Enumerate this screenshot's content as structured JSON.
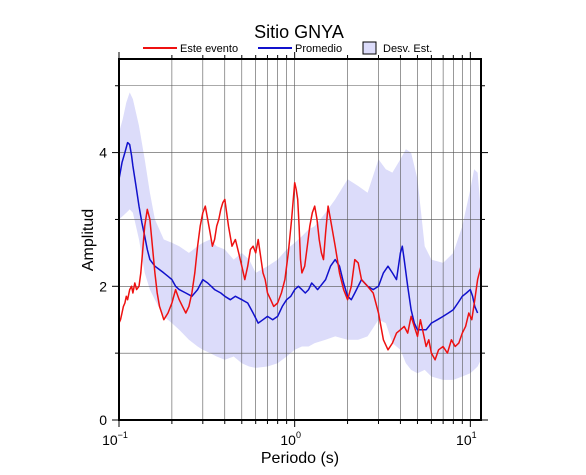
{
  "chart_data": {
    "type": "line",
    "title": "Sitio GNYA",
    "xlabel": "Periodo (s)",
    "ylabel": "Amplitud",
    "xscale": "log",
    "xlim": [
      0.1,
      11.5
    ],
    "ylim": [
      0,
      5.4
    ],
    "xticks": [
      {
        "value": 0.1,
        "base": "10",
        "exp": "−1"
      },
      {
        "value": 1,
        "base": "10",
        "exp": "0"
      },
      {
        "value": 10,
        "base": "10",
        "exp": "1"
      }
    ],
    "yticks": [
      0,
      2,
      4
    ],
    "grid": true,
    "legend": {
      "placement": "top",
      "entries": [
        {
          "label": "Este evento",
          "type": "line",
          "color": "#ee1111"
        },
        {
          "label": "Promedio",
          "type": "line",
          "color": "#1111cc"
        },
        {
          "label": "Desv. Est.",
          "type": "box",
          "color": "#dcdcfa"
        }
      ]
    },
    "band": {
      "name": "Desv. Est.",
      "color": "#dcdcfa",
      "x": [
        0.1,
        0.105,
        0.11,
        0.115,
        0.12,
        0.13,
        0.14,
        0.15,
        0.16,
        0.18,
        0.2,
        0.22,
        0.25,
        0.28,
        0.3,
        0.33,
        0.36,
        0.4,
        0.45,
        0.5,
        0.55,
        0.6,
        0.7,
        0.8,
        0.9,
        1.0,
        1.1,
        1.2,
        1.3,
        1.5,
        1.7,
        2.0,
        2.3,
        2.6,
        3.0,
        3.3,
        3.6,
        4.0,
        4.3,
        4.6,
        5.0,
        5.5,
        6.0,
        7.0,
        8.0,
        9.0,
        10.0,
        10.5,
        11.0,
        11.5
      ],
      "upper": [
        4.3,
        4.5,
        4.75,
        4.9,
        4.8,
        4.4,
        3.9,
        3.4,
        3.0,
        2.7,
        2.65,
        2.6,
        2.5,
        2.6,
        2.65,
        2.7,
        2.6,
        2.55,
        2.4,
        2.5,
        2.4,
        2.2,
        2.3,
        2.4,
        2.55,
        2.65,
        2.75,
        2.85,
        2.9,
        3.1,
        3.3,
        3.6,
        3.5,
        3.4,
        3.9,
        3.75,
        3.7,
        3.9,
        4.05,
        4.0,
        3.6,
        2.6,
        2.4,
        2.35,
        2.5,
        2.9,
        3.45,
        3.75,
        3.7,
        3.1
      ],
      "lower": [
        3.0,
        3.05,
        3.1,
        3.15,
        3.1,
        2.7,
        2.2,
        1.95,
        1.8,
        1.55,
        1.45,
        1.35,
        1.2,
        1.1,
        1.05,
        1.0,
        0.95,
        0.9,
        0.95,
        0.85,
        0.8,
        0.78,
        0.8,
        0.85,
        0.95,
        1.05,
        1.1,
        1.1,
        1.15,
        1.2,
        1.25,
        1.2,
        1.2,
        1.25,
        1.5,
        1.45,
        1.15,
        1.05,
        0.85,
        0.75,
        0.7,
        0.75,
        0.65,
        0.6,
        0.6,
        0.65,
        0.7,
        0.75,
        0.8,
        0.9
      ]
    },
    "series": [
      {
        "name": "Promedio",
        "color": "#1111cc",
        "x": [
          0.1,
          0.104,
          0.108,
          0.112,
          0.115,
          0.118,
          0.12,
          0.125,
          0.13,
          0.135,
          0.14,
          0.145,
          0.15,
          0.16,
          0.17,
          0.18,
          0.19,
          0.2,
          0.21,
          0.22,
          0.24,
          0.26,
          0.28,
          0.3,
          0.32,
          0.35,
          0.38,
          0.4,
          0.43,
          0.46,
          0.5,
          0.54,
          0.58,
          0.62,
          0.66,
          0.7,
          0.75,
          0.8,
          0.85,
          0.9,
          0.95,
          1.0,
          1.05,
          1.1,
          1.15,
          1.2,
          1.25,
          1.3,
          1.35,
          1.4,
          1.5,
          1.6,
          1.7,
          1.8,
          1.9,
          2.0,
          2.1,
          2.2,
          2.4,
          2.6,
          2.8,
          3.0,
          3.2,
          3.4,
          3.6,
          3.8,
          4.0,
          4.1,
          4.2,
          4.4,
          4.6,
          4.8,
          5.0,
          5.3,
          5.6,
          6.0,
          6.5,
          7.0,
          7.5,
          8.0,
          8.5,
          9.0,
          9.5,
          10.0,
          10.3,
          10.6,
          11.0
        ],
        "y": [
          3.6,
          3.85,
          4.0,
          4.15,
          4.12,
          3.95,
          3.8,
          3.5,
          3.2,
          2.95,
          2.75,
          2.55,
          2.4,
          2.3,
          2.25,
          2.2,
          2.15,
          2.1,
          2.0,
          1.95,
          1.9,
          1.85,
          1.95,
          2.1,
          2.05,
          1.95,
          1.9,
          1.85,
          1.8,
          1.85,
          1.8,
          1.75,
          1.6,
          1.45,
          1.5,
          1.55,
          1.5,
          1.55,
          1.7,
          1.8,
          1.85,
          1.95,
          2.0,
          1.95,
          1.9,
          1.95,
          2.05,
          2.0,
          1.95,
          2.0,
          2.1,
          2.3,
          2.4,
          2.3,
          2.05,
          1.85,
          1.8,
          1.9,
          2.1,
          2.0,
          1.95,
          2.0,
          2.2,
          2.3,
          2.2,
          2.1,
          2.5,
          2.6,
          2.4,
          2.0,
          1.65,
          1.45,
          1.35,
          1.35,
          1.35,
          1.45,
          1.5,
          1.55,
          1.6,
          1.65,
          1.75,
          1.85,
          1.9,
          1.95,
          1.85,
          1.7,
          1.6
        ]
      },
      {
        "name": "Este evento",
        "color": "#ee1111",
        "x": [
          0.1,
          0.102,
          0.104,
          0.106,
          0.108,
          0.11,
          0.112,
          0.115,
          0.118,
          0.12,
          0.123,
          0.126,
          0.13,
          0.133,
          0.136,
          0.14,
          0.145,
          0.15,
          0.155,
          0.16,
          0.165,
          0.17,
          0.175,
          0.18,
          0.19,
          0.2,
          0.21,
          0.22,
          0.23,
          0.24,
          0.25,
          0.26,
          0.27,
          0.28,
          0.29,
          0.3,
          0.31,
          0.32,
          0.33,
          0.34,
          0.35,
          0.36,
          0.37,
          0.38,
          0.39,
          0.4,
          0.42,
          0.44,
          0.46,
          0.48,
          0.5,
          0.52,
          0.54,
          0.56,
          0.58,
          0.6,
          0.62,
          0.64,
          0.66,
          0.68,
          0.7,
          0.73,
          0.76,
          0.8,
          0.84,
          0.88,
          0.92,
          0.96,
          1.0,
          1.02,
          1.04,
          1.06,
          1.08,
          1.1,
          1.14,
          1.18,
          1.22,
          1.26,
          1.3,
          1.34,
          1.38,
          1.42,
          1.46,
          1.5,
          1.55,
          1.6,
          1.7,
          1.8,
          1.9,
          2.0,
          2.1,
          2.2,
          2.3,
          2.4,
          2.6,
          2.8,
          3.0,
          3.2,
          3.4,
          3.6,
          3.8,
          4.0,
          4.2,
          4.4,
          4.6,
          4.8,
          5.0,
          5.2,
          5.4,
          5.6,
          5.8,
          6.0,
          6.3,
          6.6,
          7.0,
          7.4,
          7.8,
          8.2,
          8.6,
          9.0,
          9.4,
          9.8,
          10.2,
          10.6,
          11.0,
          11.5
        ],
        "y": [
          1.45,
          1.5,
          1.6,
          1.7,
          1.75,
          1.85,
          1.8,
          1.95,
          2.0,
          1.9,
          2.05,
          1.95,
          2.0,
          2.2,
          2.5,
          2.9,
          3.15,
          3.0,
          2.6,
          2.2,
          1.9,
          1.7,
          1.6,
          1.5,
          1.6,
          1.75,
          1.95,
          1.8,
          1.7,
          1.6,
          1.7,
          1.9,
          2.2,
          2.6,
          2.9,
          3.1,
          3.2,
          3.0,
          2.8,
          2.6,
          2.7,
          2.9,
          3.0,
          3.15,
          3.25,
          3.3,
          2.9,
          2.6,
          2.7,
          2.5,
          2.3,
          2.1,
          2.3,
          2.55,
          2.6,
          2.5,
          2.7,
          2.45,
          2.2,
          2.1,
          1.9,
          1.8,
          1.7,
          1.75,
          1.9,
          2.1,
          2.5,
          3.0,
          3.55,
          3.45,
          3.3,
          2.9,
          2.4,
          2.2,
          2.3,
          2.6,
          2.9,
          3.1,
          3.2,
          3.0,
          2.7,
          2.5,
          2.4,
          2.8,
          3.2,
          3.0,
          2.6,
          2.2,
          1.95,
          1.8,
          2.0,
          2.4,
          2.35,
          2.1,
          2.0,
          1.9,
          1.6,
          1.2,
          1.05,
          1.15,
          1.3,
          1.35,
          1.4,
          1.3,
          1.55,
          1.4,
          1.25,
          1.5,
          1.3,
          1.1,
          1.2,
          1.0,
          0.9,
          1.05,
          1.1,
          1.0,
          1.2,
          1.1,
          1.15,
          1.3,
          1.4,
          1.6,
          1.5,
          1.8,
          2.1,
          2.3
        ]
      }
    ]
  }
}
